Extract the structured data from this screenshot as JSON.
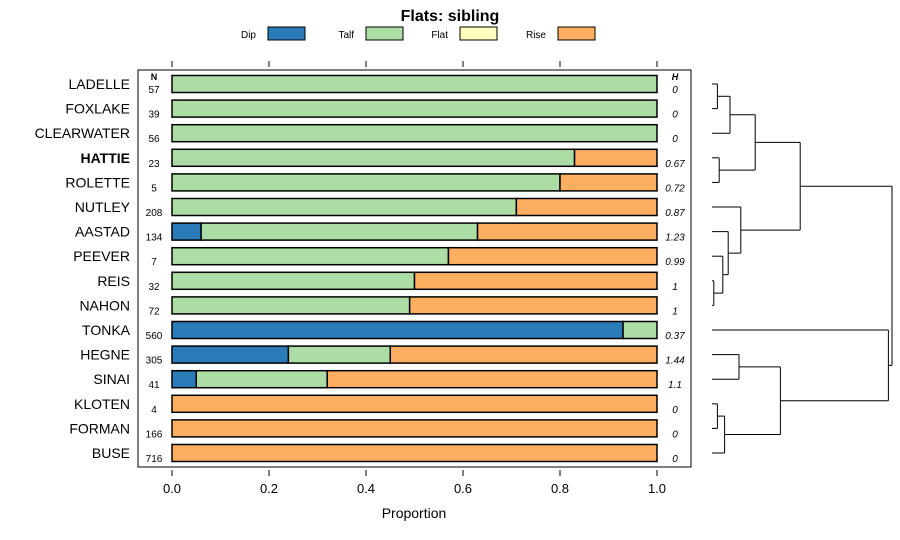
{
  "chart_data": {
    "type": "bar",
    "orientation": "horizontal",
    "stacked": true,
    "title": "Flats: sibling",
    "xlabel": "Proportion",
    "xlim": [
      0,
      1
    ],
    "xticks": [
      "0.0",
      "0.2",
      "0.4",
      "0.6",
      "0.8",
      "1.0"
    ],
    "n_header": "N",
    "h_header": "H",
    "highlight": "HATTIE",
    "legend": [
      {
        "name": "Dip",
        "color": "#2b7bb9"
      },
      {
        "name": "Talf",
        "color": "#abdda4"
      },
      {
        "name": "Flat",
        "color": "#ffffbf"
      },
      {
        "name": "Rise",
        "color": "#fdae61"
      }
    ],
    "categories": [
      "LADELLE",
      "FOXLAKE",
      "CLEARWATER",
      "HATTIE",
      "ROLETTE",
      "NUTLEY",
      "AASTAD",
      "PEEVER",
      "REIS",
      "NAHON",
      "TONKA",
      "HEGNE",
      "SINAI",
      "KLOTEN",
      "FORMAN",
      "BUSE"
    ],
    "n": [
      "57",
      "39",
      "56",
      "23",
      "5",
      "208",
      "134",
      "7",
      "32",
      "72",
      "560",
      "305",
      "41",
      "4",
      "166",
      "716"
    ],
    "h": [
      "0",
      "0",
      "0",
      "0.67",
      "0.72",
      "0.87",
      "1.23",
      "0.99",
      "1",
      "1",
      "0.37",
      "1.44",
      "1.1",
      "0",
      "0",
      "0"
    ],
    "series": [
      {
        "name": "Dip",
        "values": [
          0,
          0,
          0,
          0,
          0,
          0,
          0.06,
          0,
          0,
          0,
          0.93,
          0.24,
          0.05,
          0,
          0,
          0
        ]
      },
      {
        "name": "Talf",
        "values": [
          1,
          1,
          1,
          0.83,
          0.8,
          0.71,
          0.57,
          0.57,
          0.5,
          0.49,
          0.07,
          0.21,
          0.27,
          0,
          0,
          0
        ]
      },
      {
        "name": "Flat",
        "values": [
          0,
          0,
          0,
          0,
          0,
          0,
          0,
          0,
          0,
          0,
          0,
          0,
          0,
          0,
          0,
          0
        ]
      },
      {
        "name": "Rise",
        "values": [
          0,
          0,
          0,
          0.17,
          0.2,
          0.29,
          0.37,
          0.43,
          0.5,
          0.51,
          0,
          0.55,
          0.68,
          1,
          1,
          1
        ]
      }
    ],
    "dendrogram": {
      "type": "hierarchical clustering of categories",
      "merges": [
        [
          "LADELLE",
          "FOXLAKE",
          0.03
        ],
        [
          "A1",
          "CLEARWATER",
          0.1
        ],
        [
          "HATTIE",
          "ROLETTE",
          0.04
        ],
        [
          "A2",
          "A3",
          0.24
        ],
        [
          "REIS",
          "NAHON",
          0.01
        ],
        [
          "PEEVER",
          "A5",
          0.06
        ],
        [
          "AASTAD",
          "A6",
          0.09
        ],
        [
          "NUTLEY",
          "A7",
          0.16
        ],
        [
          "A4",
          "A8",
          0.49
        ],
        [
          "HEGNE",
          "SINAI",
          0.15
        ],
        [
          "KLOTEN",
          "FORMAN",
          0.03
        ],
        [
          "A11",
          "BUSE",
          0.07
        ],
        [
          "A10",
          "A12",
          0.38
        ],
        [
          "TONKA",
          "A13",
          0.98
        ],
        [
          "A9",
          "A14",
          1.0
        ]
      ]
    }
  }
}
